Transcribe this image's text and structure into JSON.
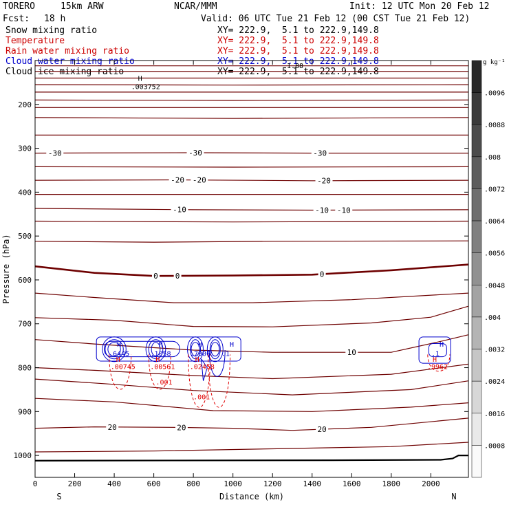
{
  "header": {
    "model": "TORERO",
    "resolution": "15km ARW",
    "org": "NCAR/MMM",
    "init": "Init: 12 UTC Mon 20 Feb 12",
    "fcst_label": "Fcst:",
    "fcst_value": "18 h",
    "valid": "Valid: 06 UTC Tue 21 Feb 12 (00 CST Tue 21 Feb 12)"
  },
  "legend": [
    {
      "name": "Snow mixing ratio",
      "color": "#000000",
      "xy": "XY= 222.9,  5.1 to 222.9,149.8"
    },
    {
      "name": "Temperature",
      "color": "#cc0000",
      "xy": "XY= 222.9,  5.1 to 222.9,149.8"
    },
    {
      "name": "Rain water mixing ratio",
      "color": "#cc0000",
      "xy": "XY= 222.9,  5.1 to 222.9,149.8"
    },
    {
      "name": "Cloud water mixing ratio",
      "color": "#0000cc",
      "xy": "XY= 222.9,  5.1 to 222.9,149.8"
    },
    {
      "name": "Cloud ice mixing ratio",
      "color": "#000000",
      "xy": "XY= 222.9,  5.1 to 222.9,149.8"
    }
  ],
  "colors": {
    "temperature": "#6e0000",
    "zero_isotherm": "#6e0000",
    "cloud_water": "#0000cc",
    "rain": "#e00000",
    "terrain": "#000000"
  },
  "chart_data": {
    "type": "contour",
    "xlabel": "Distance (km)",
    "ylabel": "Pressure (hPa)",
    "xlim": [
      0,
      2190
    ],
    "ylim": [
      1050,
      100
    ],
    "x_ticks": [
      0,
      200,
      400,
      600,
      800,
      1000,
      1200,
      1400,
      1600,
      1800,
      2000
    ],
    "y_ticks": [
      200,
      300,
      400,
      500,
      600,
      700,
      800,
      900,
      1000
    ],
    "end_labels": {
      "left": "S",
      "right": "N"
    },
    "overlay_text": "1.88",
    "snow_max": {
      "label": "H",
      "value": ".003752",
      "x": 520,
      "p": 160
    },
    "temperature_contours": [
      {
        "p": [
          [
            0,
            112
          ],
          [
            1000,
            112
          ],
          [
            2190,
            112
          ]
        ],
        "label": null
      },
      {
        "p": [
          [
            0,
            125
          ],
          [
            1000,
            125
          ],
          [
            2190,
            125
          ]
        ],
        "label": null
      },
      {
        "p": [
          [
            0,
            140
          ],
          [
            1000,
            140
          ],
          [
            2190,
            140
          ]
        ],
        "label": null
      },
      {
        "p": [
          [
            0,
            155
          ],
          [
            1000,
            156
          ],
          [
            2190,
            155
          ]
        ],
        "label": null
      },
      {
        "p": [
          [
            0,
            172
          ],
          [
            800,
            172
          ],
          [
            2190,
            172
          ]
        ],
        "label": null
      },
      {
        "p": [
          [
            0,
            190
          ],
          [
            1000,
            191
          ],
          [
            2190,
            190
          ]
        ],
        "label": null
      },
      {
        "p": [
          [
            0,
            207
          ],
          [
            1000,
            207
          ],
          [
            2190,
            207
          ]
        ],
        "label": null
      },
      {
        "p": [
          [
            0,
            230
          ],
          [
            1000,
            232
          ],
          [
            2190,
            230
          ]
        ],
        "label": null
      },
      {
        "p": [
          [
            0,
            270
          ],
          [
            1000,
            270
          ],
          [
            2190,
            270
          ]
        ],
        "label": null
      },
      {
        "p": [
          [
            0,
            311
          ],
          [
            800,
            310
          ],
          [
            1400,
            311
          ],
          [
            2190,
            311
          ]
        ],
        "label": "-30",
        "label_at": [
          100,
          810,
          1440
        ]
      },
      {
        "p": [
          [
            0,
            342
          ],
          [
            1000,
            343
          ],
          [
            2190,
            342
          ]
        ],
        "label": null
      },
      {
        "p": [
          [
            0,
            373
          ],
          [
            700,
            372
          ],
          [
            1400,
            374
          ],
          [
            2190,
            373
          ]
        ],
        "label": "-20",
        "label_at": [
          720,
          830,
          1460
        ]
      },
      {
        "p": [
          [
            0,
            405
          ],
          [
            1000,
            405
          ],
          [
            2190,
            405
          ]
        ],
        "label": null
      },
      {
        "p": [
          [
            0,
            437
          ],
          [
            800,
            440
          ],
          [
            1400,
            441
          ],
          [
            2190,
            440
          ]
        ],
        "label": "-10",
        "label_at": [
          730,
          1450,
          1560
        ]
      },
      {
        "p": [
          [
            0,
            466
          ],
          [
            1000,
            468
          ],
          [
            2190,
            466
          ]
        ],
        "label": null
      },
      {
        "p": [
          [
            0,
            512
          ],
          [
            600,
            514
          ],
          [
            1200,
            512
          ],
          [
            2190,
            511
          ]
        ],
        "label": null
      },
      {
        "p": [
          [
            0,
            569
          ],
          [
            300,
            584
          ],
          [
            600,
            591
          ],
          [
            1000,
            590
          ],
          [
            1400,
            588
          ],
          [
            1800,
            578
          ],
          [
            2190,
            565
          ]
        ],
        "label": "0",
        "label_at": [
          610,
          720,
          1450
        ],
        "bold": true
      },
      {
        "p": [
          [
            0,
            630
          ],
          [
            300,
            640
          ],
          [
            700,
            652
          ],
          [
            1100,
            652
          ],
          [
            1600,
            645
          ],
          [
            2190,
            630
          ]
        ],
        "label": null
      },
      {
        "p": [
          [
            0,
            686
          ],
          [
            400,
            692
          ],
          [
            800,
            706
          ],
          [
            1200,
            707
          ],
          [
            1700,
            698
          ],
          [
            2000,
            685
          ],
          [
            2190,
            660
          ]
        ],
        "label": null
      },
      {
        "p": [
          [
            0,
            736
          ],
          [
            300,
            746
          ],
          [
            800,
            760
          ],
          [
            1200,
            765
          ],
          [
            1800,
            765
          ],
          [
            2050,
            740
          ],
          [
            2190,
            725
          ]
        ],
        "label": "10",
        "label_at": [
          1600
        ]
      },
      {
        "p": [
          [
            0,
            800
          ],
          [
            300,
            806
          ],
          [
            800,
            818
          ],
          [
            1200,
            825
          ],
          [
            1800,
            815
          ],
          [
            2190,
            792
          ]
        ],
        "label": null
      },
      {
        "p": [
          [
            0,
            826
          ],
          [
            400,
            838
          ],
          [
            800,
            852
          ],
          [
            1300,
            862
          ],
          [
            1900,
            850
          ],
          [
            2190,
            830
          ]
        ],
        "label": null
      },
      {
        "p": [
          [
            0,
            870
          ],
          [
            400,
            878
          ],
          [
            900,
            898
          ],
          [
            1400,
            900
          ],
          [
            1900,
            890
          ],
          [
            2190,
            880
          ]
        ],
        "label": null
      },
      {
        "p": [
          [
            0,
            938
          ],
          [
            300,
            935
          ],
          [
            700,
            936
          ],
          [
            1000,
            938
          ],
          [
            1300,
            943
          ],
          [
            1700,
            936
          ],
          [
            2190,
            915
          ]
        ],
        "label": "20",
        "label_at": [
          390,
          740,
          1450
        ]
      },
      {
        "p": [
          [
            0,
            992
          ],
          [
            600,
            990
          ],
          [
            1200,
            985
          ],
          [
            1800,
            980
          ],
          [
            2190,
            970
          ]
        ],
        "label": null
      }
    ],
    "cloud_maxima": [
      {
        "label": "H",
        "value": ".6445",
        "x": 400
      },
      {
        "label": "H",
        "value": ".1058",
        "x": 610
      },
      {
        "label": "H",
        "value": ".7906",
        "x": 810
      },
      {
        "label": "H",
        "value": ".1",
        "x": 970
      },
      {
        "label": "H",
        "value": ".1",
        "x": 2030
      }
    ],
    "rain_maxima": [
      {
        "label": "H",
        "value": ".00745",
        "x": 430
      },
      {
        "label": "H",
        "value": ".00561",
        "x": 630
      },
      {
        "label": "H",
        "value": ".02458",
        "x": 830
      },
      {
        "label": "H",
        "value": ".9962",
        "x": 2030
      }
    ],
    "rain_contour_labels": [
      {
        "value": ".001",
        "x": 610,
        "p": 838
      },
      {
        "value": ".001",
        "x": 800,
        "p": 872
      }
    ],
    "colorbar": {
      "unit": "g kg⁻¹",
      "ticks": [
        ".0096",
        ".0088",
        ".008",
        ".0072",
        ".0064",
        ".0056",
        ".0048",
        ".004",
        ".0032",
        ".0024",
        ".0016",
        ".0008"
      ]
    }
  }
}
